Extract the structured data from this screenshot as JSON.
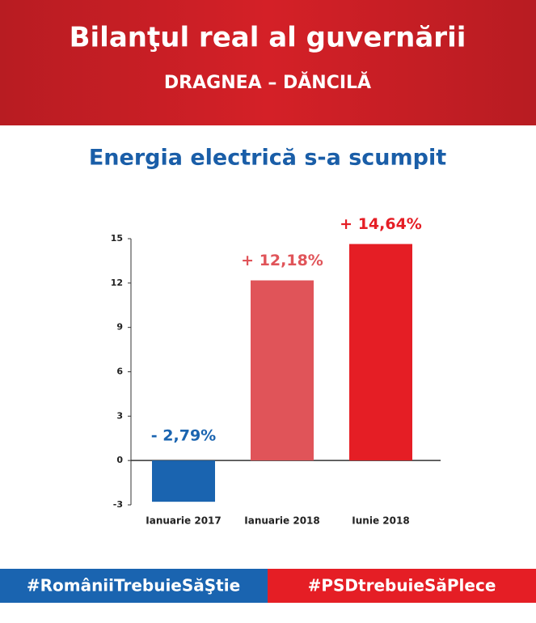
{
  "header": {
    "title": "Bilanţul real al guvernării",
    "subtitle": "DRAGNEA – DĂNCILĂ"
  },
  "chart_data": {
    "type": "bar",
    "title": "Energia electrică s-a scumpit",
    "categories": [
      "Ianuarie 2017",
      "Ianuarie 2018",
      "Iunie 2018"
    ],
    "values": [
      -2.79,
      12.18,
      14.64
    ],
    "value_labels": [
      "- 2,79%",
      "+ 12,18%",
      "+ 14,64%"
    ],
    "colors": [
      "#1a64b0",
      "#e05459",
      "#e51e25"
    ],
    "ylim": [
      -3,
      15
    ],
    "yticks": [
      -3,
      0,
      3,
      6,
      9,
      12,
      15
    ]
  },
  "footer": {
    "left": "#RomâniiTrebuieSăŞtie",
    "right": "#PSDtrebuieSăPlece"
  }
}
